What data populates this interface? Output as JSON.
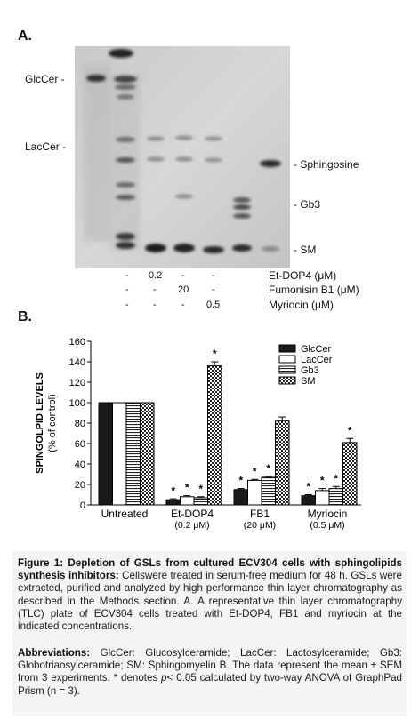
{
  "panel_a": {
    "letter": "A.",
    "left_labels": [
      "GlcCer -",
      "LacCer -"
    ],
    "right_labels": [
      "- Sphingosine",
      "- Gb3",
      "- SM"
    ],
    "conditions": [
      {
        "cells": [
          "-",
          "0.2",
          "-",
          "-"
        ],
        "label": "Et-DOP4 (μM)"
      },
      {
        "cells": [
          "-",
          "-",
          "20",
          "-"
        ],
        "label": "Fumonisin B1 (μM)"
      },
      {
        "cells": [
          "-",
          "-",
          "-",
          "0.5"
        ],
        "label": "Myriocin (μM)"
      }
    ]
  },
  "panel_b": {
    "letter": "B."
  },
  "chart_data": {
    "type": "bar",
    "ylabel": "SPINGOLPID LEVELS",
    "ylabel_sub": "(% of control)",
    "ylim": [
      0,
      160
    ],
    "yticks": [
      "0",
      "20",
      "40",
      "60",
      "80",
      "100",
      "120",
      "140",
      "160"
    ],
    "categories": [
      "Untreated",
      "Et-DOP4",
      "FB1",
      "Myriocin"
    ],
    "category_sublabels": [
      "",
      "(0.2 μM)",
      "(20 μM)",
      "(0.5 μM)"
    ],
    "legend_position": "top-right",
    "series": [
      {
        "name": "GlcCer",
        "values": [
          100,
          5,
          15,
          9
        ],
        "errors": [
          0,
          1,
          1,
          1
        ]
      },
      {
        "name": "LacCer",
        "values": [
          100,
          8,
          24,
          14
        ],
        "errors": [
          0,
          1,
          1,
          2
        ]
      },
      {
        "name": "Gb3",
        "values": [
          100,
          7,
          27,
          16
        ],
        "errors": [
          0,
          1,
          1,
          2
        ]
      },
      {
        "name": "SM",
        "values": [
          100,
          136,
          82,
          61
        ],
        "errors": [
          0,
          4,
          4,
          4
        ]
      }
    ],
    "significance": [
      [
        false,
        false,
        false,
        false
      ],
      [
        true,
        true,
        true,
        true
      ],
      [
        true,
        true,
        true,
        false
      ],
      [
        true,
        true,
        true,
        true
      ]
    ],
    "significance_marker": "*"
  },
  "caption": {
    "figure_title": "Figure 1: Depletion of GSLs from cultured ECV304 cells with sphingolipids synthesis inhibitors:",
    "body": "Cellswere treated in serum-free medium for 48 h. GSLs were extracted, purified and analyzed by high performance thin layer chromatography as described in the Methods section. A. A representative thin layer chromatography (TLC) plate of ECV304 cells treated with Et-DOP4, FB1 and myriocin at the indicated concentrations.",
    "abbrev_heading": "Abbreviations:",
    "abbrev_text_1": "GlcCer: Glucosylceramide; LacCer: Lactosylceramide; Gb3: Globotriaosylceramide; SM: Sphingomyelin B. The data represent the mean ± SEM from 3 experiments. * denotes",
    "abbrev_p": "p",
    "abbrev_text_2": "< 0.05 calculated by two-way ANOVA of GraphPad Prism (n = 3)."
  }
}
